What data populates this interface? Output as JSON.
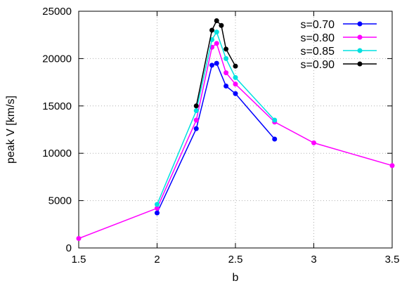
{
  "chart_data": {
    "type": "line",
    "title": "",
    "xlabel": "b",
    "ylabel": "peak V [km/s]",
    "xlim": [
      1.5,
      3.5
    ],
    "ylim": [
      0,
      25000
    ],
    "x_ticks": [
      "1.5",
      "2",
      "2.5",
      "3",
      "3.5"
    ],
    "y_ticks": [
      "0",
      "5000",
      "10000",
      "15000",
      "20000",
      "25000"
    ],
    "grid": true,
    "legend_position": "top-right",
    "series": [
      {
        "name": "s=0.70",
        "color": "#0000ff",
        "x": [
          2.0,
          2.25,
          2.35,
          2.38,
          2.44,
          2.5,
          2.75
        ],
        "y": [
          3700,
          12600,
          19300,
          19500,
          17100,
          16300,
          11500
        ]
      },
      {
        "name": "s=0.80",
        "color": "#ff00ff",
        "x": [
          1.5,
          2.0,
          2.25,
          2.35,
          2.38,
          2.44,
          2.5,
          2.75,
          3.0,
          3.5
        ],
        "y": [
          1000,
          4200,
          13500,
          21200,
          21600,
          18500,
          17300,
          13300,
          11100,
          8700
        ]
      },
      {
        "name": "s=0.85",
        "color": "#00e0e0",
        "x": [
          2.0,
          2.25,
          2.35,
          2.38,
          2.44,
          2.5,
          2.75
        ],
        "y": [
          4600,
          14500,
          22000,
          22800,
          20000,
          18000,
          13500
        ]
      },
      {
        "name": "s=0.90",
        "color": "#000000",
        "x": [
          2.25,
          2.35,
          2.38,
          2.41,
          2.44,
          2.5
        ],
        "y": [
          15000,
          23000,
          24000,
          23500,
          21000,
          19200
        ]
      }
    ]
  }
}
